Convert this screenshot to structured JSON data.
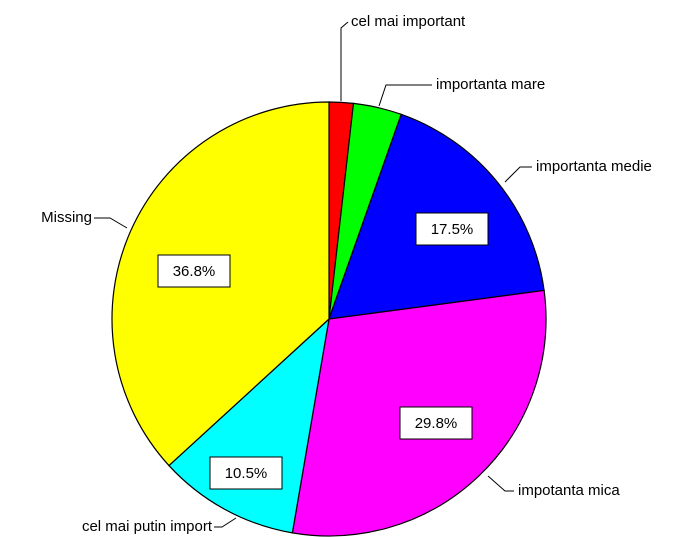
{
  "chart_data": {
    "type": "pie",
    "categories": [
      "cel mai important",
      "importanta mare",
      "importanta medie",
      "impotanta mica",
      "cel mai putin import",
      "Missing"
    ],
    "values": [
      1.8,
      3.6,
      17.5,
      29.8,
      10.5,
      36.8
    ],
    "value_labels": [
      null,
      null,
      "17.5%",
      "29.8%",
      "10.5%",
      "36.8%"
    ],
    "colors": [
      "#ff0000",
      "#00ff00",
      "#0000ff",
      "#ff00ff",
      "#00ffff",
      "#ffff00"
    ]
  }
}
